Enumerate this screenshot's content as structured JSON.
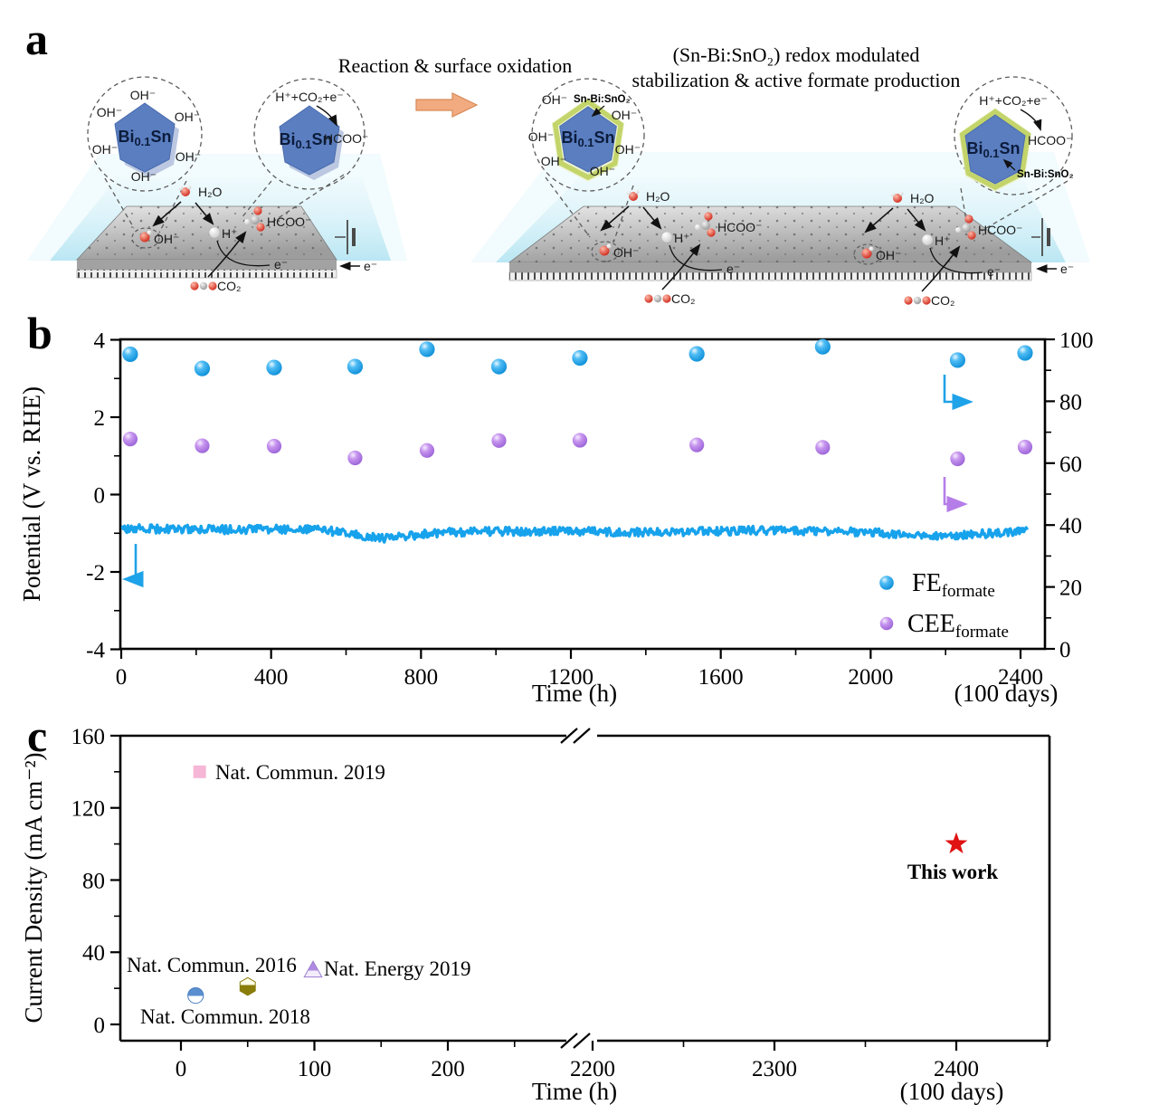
{
  "figure": {
    "panel_a_letter": "a",
    "panel_b_letter": "b",
    "panel_c_letter": "c"
  },
  "panel_a": {
    "transition_label": "Reaction & surface oxidation",
    "right_title_line1": "(Sn-Bi:SnO₂) redox modulated",
    "right_title_line2": "stabilization & active formate production",
    "particle_label": {
      "prefix": "Bi",
      "subscript": "0.1",
      "suffix": "Sn"
    },
    "shell_label": "Sn-Bi:SnO₂",
    "reaction_label": "H⁺+CO₂+e⁻",
    "species": {
      "oh": "OH⁻",
      "h2o": "H₂O",
      "h": "H⁺",
      "hcoo": "HCOO⁻",
      "co2": "CO₂",
      "e": "e⁻"
    }
  },
  "panel_b": {
    "ylabel_left": "Potential (V vs. RHE)",
    "xlabel": "Time (h)",
    "xlabel_right": "(100 days)",
    "legend": [
      {
        "main": "FE",
        "sub": "formate"
      },
      {
        "main": "CEE",
        "sub": "formate"
      }
    ]
  },
  "panel_c": {
    "ylabel": "Current Density (mA cm⁻²)",
    "xlabel": "Time (h)",
    "xlabel_right": "(100 days)"
  },
  "chart_data": [
    {
      "panel": "b",
      "type": "scatter",
      "title": "",
      "xlabel": "Time (h)",
      "xlabel_right": "(100 days)",
      "ylabel_left": "Potential (V vs. RHE)",
      "ylim_left": [
        -4,
        4
      ],
      "yticks_left": [
        -4,
        -2,
        0,
        2,
        4
      ],
      "ylim_right": [
        0,
        100
      ],
      "yticks_right": [
        0,
        20,
        40,
        60,
        80,
        100
      ],
      "xlim": [
        0,
        2465
      ],
      "xticks": [
        0,
        400,
        800,
        1200,
        1600,
        2000,
        2400
      ],
      "xminor_step": 200,
      "grid": false,
      "legend_position": "lower right",
      "series": [
        {
          "name": "FE_formate",
          "axis": "right",
          "marker": "sphere",
          "color": "#1ea2e8",
          "points": [
            [
              24,
              95.2
            ],
            [
              216,
              90.6
            ],
            [
              408,
              90.9
            ],
            [
              624,
              91.2
            ],
            [
              816,
              96.8
            ],
            [
              1008,
              91.2
            ],
            [
              1224,
              94.0
            ],
            [
              1536,
              95.3
            ],
            [
              1872,
              97.6
            ],
            [
              2232,
              93.3
            ],
            [
              2412,
              95.6
            ]
          ]
        },
        {
          "name": "CEE_formate",
          "axis": "right",
          "marker": "sphere",
          "color": "#b57de8",
          "points": [
            [
              24,
              67.8
            ],
            [
              216,
              65.6
            ],
            [
              408,
              65.5
            ],
            [
              624,
              61.7
            ],
            [
              816,
              64.1
            ],
            [
              1008,
              67.3
            ],
            [
              1224,
              67.4
            ],
            [
              1536,
              65.9
            ],
            [
              1872,
              65.1
            ],
            [
              2232,
              61.4
            ],
            [
              2412,
              65.2
            ]
          ]
        },
        {
          "name": "Potential",
          "axis": "left",
          "marker": "noisy-line",
          "color": "#17a2ec",
          "noise_v": 0.055,
          "anchors": [
            [
              0,
              -0.82
            ],
            [
              150,
              -0.84
            ],
            [
              300,
              -0.85
            ],
            [
              450,
              -0.84
            ],
            [
              550,
              -0.87
            ],
            [
              620,
              -0.97
            ],
            [
              680,
              -1.07
            ],
            [
              730,
              -1.06
            ],
            [
              800,
              -0.98
            ],
            [
              870,
              -0.92
            ],
            [
              950,
              -0.9
            ],
            [
              1100,
              -0.89
            ],
            [
              1250,
              -0.9
            ],
            [
              1400,
              -0.92
            ],
            [
              1550,
              -0.9
            ],
            [
              1700,
              -0.87
            ],
            [
              1850,
              -0.88
            ],
            [
              1950,
              -0.91
            ],
            [
              2050,
              -0.95
            ],
            [
              2150,
              -1.0
            ],
            [
              2250,
              -0.99
            ],
            [
              2320,
              -0.94
            ],
            [
              2400,
              -0.89
            ],
            [
              2420,
              -0.88
            ]
          ]
        }
      ]
    },
    {
      "panel": "c",
      "type": "scatter",
      "title": "",
      "xlabel": "Time (h)",
      "xlabel_right": "(100 days)",
      "ylabel": "Current Density (mA cm⁻²)",
      "ylim": [
        0,
        160
      ],
      "yticks": [
        0,
        40,
        80,
        120,
        160
      ],
      "yminor": [
        20,
        60,
        100,
        140
      ],
      "x_axis_break": true,
      "x_left_ticks": [
        0,
        100,
        200
      ],
      "x_left_minor": [
        50,
        150,
        250
      ],
      "x_right_ticks": [
        2200,
        2300,
        2400
      ],
      "x_right_minor": [
        2250,
        2350,
        2450
      ],
      "grid": false,
      "points": [
        {
          "label": "Nat. Commun. 2019",
          "x": 14,
          "y": 140,
          "marker": "square",
          "color": "#f6b6d6"
        },
        {
          "label": "Nat. Commun. 2016",
          "x": 50,
          "y": 21,
          "marker": "hexagon-half",
          "color": "#8a7d0a"
        },
        {
          "label": "Nat. Commun. 2018",
          "x": 11,
          "y": 16,
          "marker": "circle-half",
          "color": "#5b8fd0"
        },
        {
          "label": "Nat. Energy 2019",
          "x": 99,
          "y": 30,
          "marker": "triangle-half",
          "color": "#a98fd8"
        },
        {
          "label": "This work",
          "x": 2400,
          "y": 100,
          "marker": "star",
          "color": "#e01212"
        }
      ]
    }
  ]
}
